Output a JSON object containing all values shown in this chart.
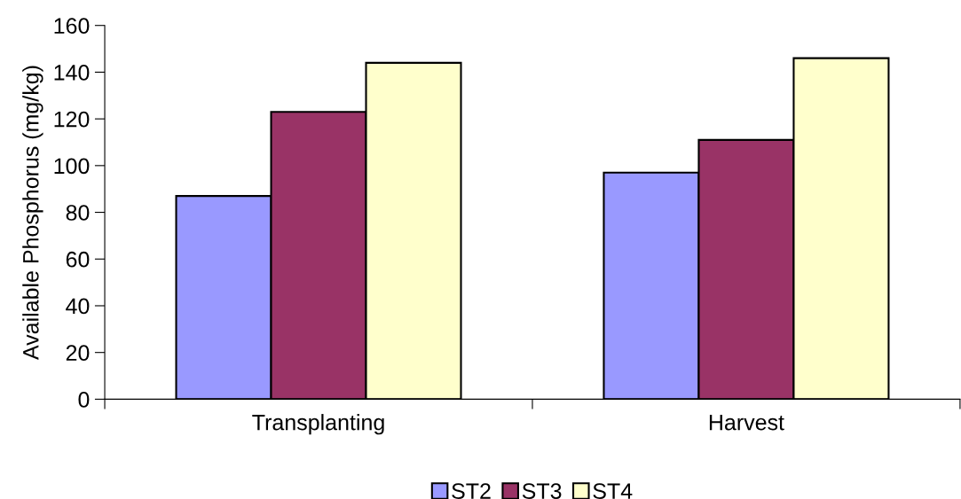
{
  "chart_data": {
    "type": "bar",
    "ylabel": "Available Phosphorus (mg/kg)",
    "categories": [
      "Transplanting",
      "Harvest"
    ],
    "series": [
      {
        "name": "ST2",
        "color": "#9999ff",
        "values": [
          87,
          97
        ]
      },
      {
        "name": "ST3",
        "color": "#993366",
        "values": [
          123,
          111
        ]
      },
      {
        "name": "ST4",
        "color": "#ffffcc",
        "values": [
          144,
          146
        ]
      }
    ],
    "ylim": [
      0,
      160
    ],
    "yticks": [
      0,
      20,
      40,
      60,
      80,
      100,
      120,
      140,
      160
    ],
    "legend": "bottom"
  }
}
